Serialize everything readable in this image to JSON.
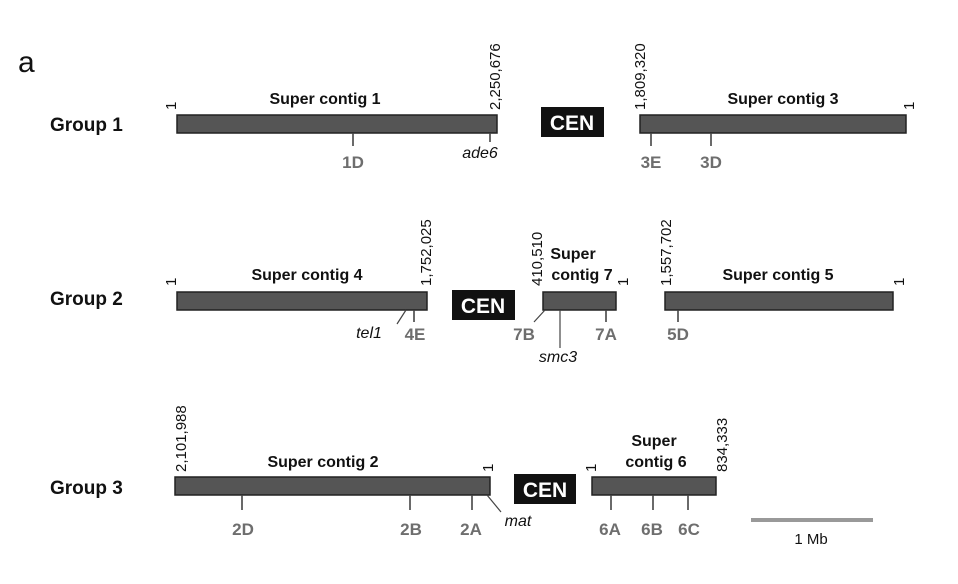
{
  "panel_label": "a",
  "cen_label": "CEN",
  "groups": {
    "g1": {
      "label": "Group 1",
      "sc1": {
        "name": "Super contig 1",
        "start": "1",
        "end": "2,250,676",
        "marker_1d": "1D",
        "gene_ade6": "ade6"
      },
      "sc3": {
        "name": "Super contig 3",
        "start": "1,809,320",
        "end": "1",
        "marker_3e": "3E",
        "marker_3d": "3D"
      }
    },
    "g2": {
      "label": "Group 2",
      "sc4": {
        "name": "Super contig 4",
        "start": "1",
        "end": "1,752,025",
        "gene_tel1": "tel1",
        "marker_4e": "4E"
      },
      "sc7": {
        "name_line1": "Super",
        "name_line2": "contig 7",
        "start": "410,510",
        "end": "1",
        "marker_7b": "7B",
        "marker_7a": "7A",
        "gene_smc3": "smc3"
      },
      "sc5": {
        "name": "Super contig 5",
        "start": "1,557,702",
        "end": "1",
        "marker_5d": "5D"
      }
    },
    "g3": {
      "label": "Group 3",
      "sc2": {
        "name": "Super contig 2",
        "start": "2,101,988",
        "end": "1",
        "marker_2d": "2D",
        "marker_2b": "2B",
        "marker_2a": "2A",
        "gene_mat": "mat"
      },
      "sc6": {
        "name_line1": "Super",
        "name_line2": "contig 6",
        "start": "1",
        "end": "834,333",
        "marker_6a": "6A",
        "marker_6b": "6B",
        "marker_6c": "6C"
      }
    }
  },
  "scale_bar": {
    "label": "1 Mb"
  },
  "colors": {
    "bar": "#555555",
    "marker": "#6e6e6e",
    "cen_bg": "#111111",
    "scale": "#999999"
  }
}
